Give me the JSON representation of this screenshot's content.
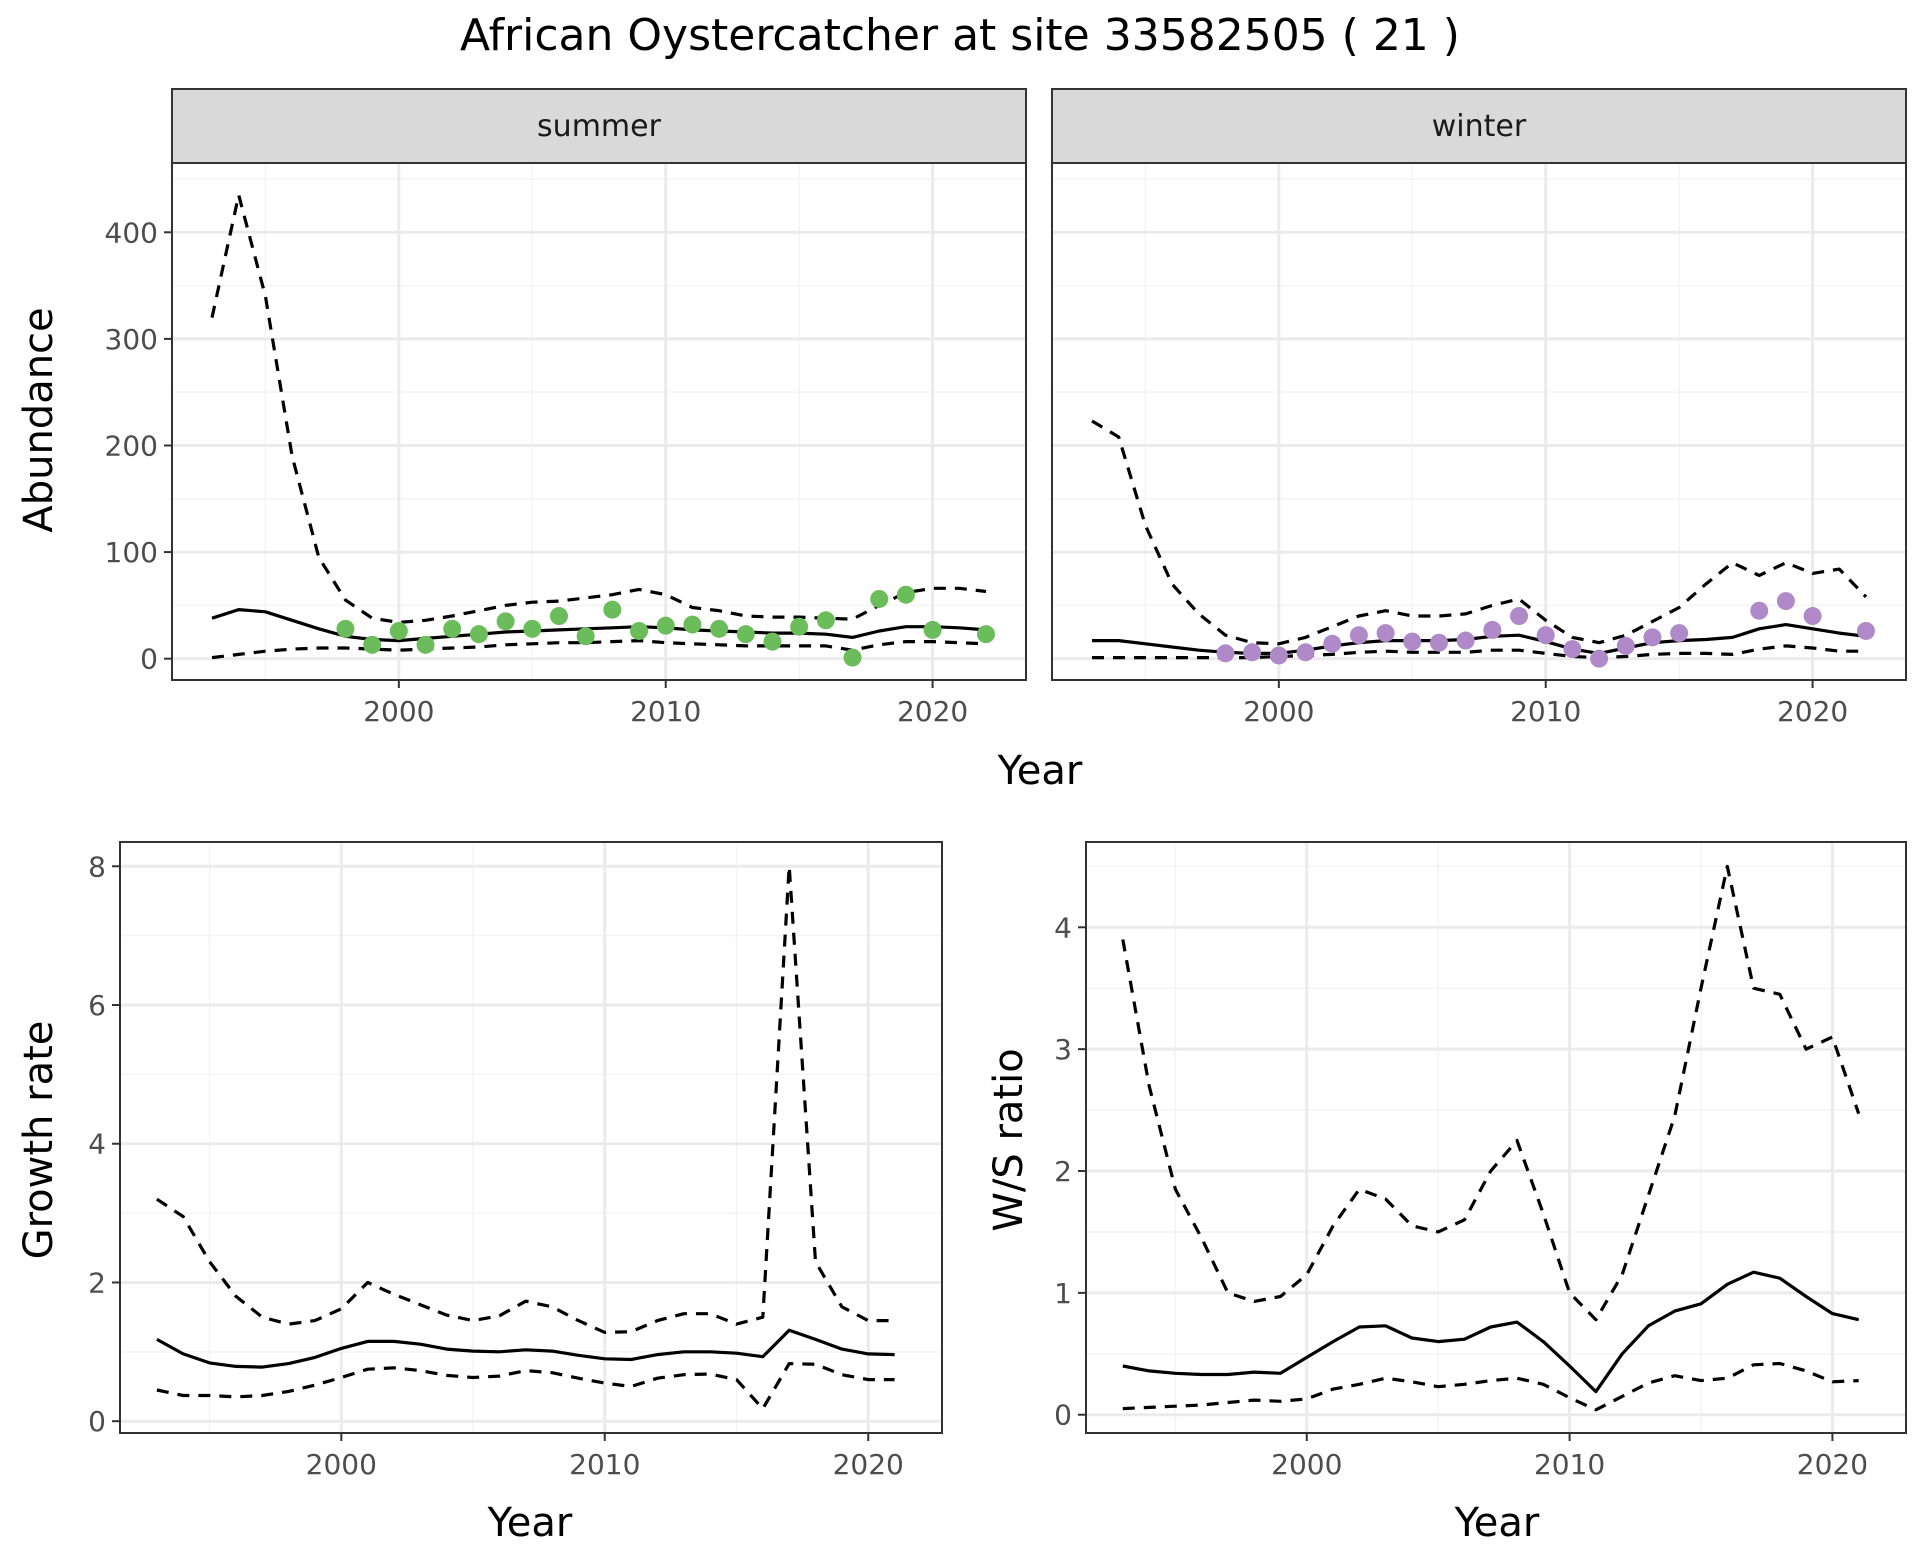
{
  "title": "African Oystercatcher at site 33582505 ( 21 )",
  "colors": {
    "summer_points": "#6abd5a",
    "winter_points": "#b08ac8",
    "line": "#000000",
    "grid_major": "#ebebeb",
    "grid_minor": "#f4f4f4",
    "strip_fill": "#d9d9d9",
    "panel_border": "#333333"
  },
  "chart_data": [
    {
      "type": "line",
      "facet": "summer",
      "xlabel": "Year",
      "ylabel": "Abundance",
      "xlim": [
        1991.5,
        2023.5
      ],
      "ylim": [
        -20,
        465
      ],
      "xticks": [
        2000,
        2010,
        2020
      ],
      "yticks": [
        0,
        100,
        200,
        300,
        400
      ],
      "x": [
        1993,
        1994,
        1995,
        1996,
        1997,
        1998,
        1999,
        2000,
        2001,
        2002,
        2003,
        2004,
        2005,
        2006,
        2007,
        2008,
        2009,
        2010,
        2011,
        2012,
        2013,
        2014,
        2015,
        2016,
        2017,
        2018,
        2019,
        2020,
        2021,
        2022
      ],
      "series": [
        {
          "role": "estimate",
          "style": "solid",
          "values": [
            38,
            46,
            44,
            36,
            28,
            21,
            18,
            17,
            19,
            21,
            23,
            25,
            26,
            27,
            28,
            29,
            30,
            29,
            27,
            26,
            25,
            24,
            24,
            23,
            20,
            26,
            30,
            30,
            29,
            27
          ]
        },
        {
          "role": "upper",
          "style": "dashed",
          "values": [
            320,
            435,
            340,
            190,
            95,
            55,
            38,
            34,
            36,
            40,
            45,
            50,
            53,
            54,
            57,
            60,
            65,
            60,
            48,
            45,
            40,
            39,
            39,
            38,
            37,
            50,
            62,
            66,
            66,
            63
          ]
        },
        {
          "role": "lower",
          "style": "dashed",
          "values": [
            1,
            4,
            7,
            9,
            10,
            10,
            9,
            8,
            9,
            10,
            11,
            13,
            14,
            15,
            15,
            16,
            17,
            15,
            14,
            13,
            12,
            12,
            12,
            12,
            8,
            13,
            16,
            16,
            15,
            14
          ]
        }
      ],
      "points": {
        "x": [
          1998,
          1999,
          2000,
          2001,
          2002,
          2003,
          2004,
          2005,
          2006,
          2007,
          2008,
          2009,
          2010,
          2011,
          2012,
          2013,
          2014,
          2015,
          2016,
          2017,
          2018,
          2019,
          2020,
          2022
        ],
        "y": [
          28,
          13,
          26,
          13,
          28,
          23,
          35,
          28,
          40,
          21,
          46,
          26,
          31,
          32,
          28,
          23,
          16,
          30,
          36,
          1,
          56,
          60,
          27,
          23
        ]
      }
    },
    {
      "type": "line",
      "facet": "winter",
      "xlabel": "Year",
      "ylabel": "Abundance",
      "xlim": [
        1991.5,
        2023.5
      ],
      "ylim": [
        -20,
        465
      ],
      "xticks": [
        2000,
        2010,
        2020
      ],
      "yticks": [
        0,
        100,
        200,
        300,
        400
      ],
      "x": [
        1993,
        1994,
        1995,
        1996,
        1997,
        1998,
        1999,
        2000,
        2001,
        2002,
        2003,
        2004,
        2005,
        2006,
        2007,
        2008,
        2009,
        2010,
        2011,
        2012,
        2013,
        2014,
        2015,
        2016,
        2017,
        2018,
        2019,
        2020,
        2021,
        2022
      ],
      "series": [
        {
          "role": "estimate",
          "style": "solid",
          "values": [
            17,
            17,
            14,
            11,
            8,
            6,
            5,
            5,
            8,
            12,
            15,
            17,
            17,
            17,
            18,
            21,
            22,
            16,
            9,
            5,
            10,
            15,
            17,
            18,
            20,
            28,
            32,
            28,
            24,
            21
          ]
        },
        {
          "role": "upper",
          "style": "dashed",
          "values": [
            223,
            208,
            125,
            70,
            42,
            22,
            15,
            14,
            20,
            30,
            40,
            45,
            40,
            40,
            42,
            50,
            56,
            36,
            20,
            15,
            22,
            35,
            48,
            70,
            90,
            78,
            90,
            80,
            84,
            58
          ]
        },
        {
          "role": "lower",
          "style": "dashed",
          "values": [
            1,
            1,
            1,
            1,
            1,
            1,
            1,
            2,
            3,
            4,
            6,
            7,
            6,
            6,
            6,
            8,
            8,
            5,
            2,
            1,
            2,
            4,
            5,
            5,
            4,
            9,
            12,
            10,
            7,
            7
          ]
        }
      ],
      "points": {
        "x": [
          1998,
          1999,
          2000,
          2001,
          2002,
          2003,
          2004,
          2005,
          2006,
          2007,
          2008,
          2009,
          2010,
          2011,
          2012,
          2013,
          2014,
          2015,
          2018,
          2019,
          2020,
          2022
        ],
        "y": [
          5,
          6,
          3,
          6,
          14,
          22,
          24,
          16,
          15,
          17,
          27,
          40,
          22,
          9,
          0,
          12,
          20,
          24,
          45,
          54,
          40,
          26
        ]
      }
    },
    {
      "type": "line",
      "xlabel": "Year",
      "ylabel": "Growth rate",
      "xlim": [
        1991.6,
        2022.8
      ],
      "ylim": [
        -0.17,
        8.35
      ],
      "xticks": [
        2000,
        2010,
        2020
      ],
      "yticks": [
        0,
        2,
        4,
        6,
        8
      ],
      "x": [
        1993,
        1994,
        1995,
        1996,
        1997,
        1998,
        1999,
        2000,
        2001,
        2002,
        2003,
        2004,
        2005,
        2006,
        2007,
        2008,
        2009,
        2010,
        2011,
        2012,
        2013,
        2014,
        2015,
        2016,
        2017,
        2018,
        2019,
        2020,
        2021
      ],
      "series": [
        {
          "role": "estimate",
          "style": "solid",
          "values": [
            1.18,
            0.97,
            0.84,
            0.79,
            0.78,
            0.83,
            0.92,
            1.05,
            1.15,
            1.15,
            1.11,
            1.04,
            1.01,
            1.0,
            1.03,
            1.01,
            0.95,
            0.9,
            0.89,
            0.96,
            1.0,
            1.0,
            0.98,
            0.93,
            1.31,
            1.18,
            1.04,
            0.97,
            0.96
          ]
        },
        {
          "role": "upper",
          "style": "dashed",
          "values": [
            3.2,
            2.95,
            2.3,
            1.8,
            1.5,
            1.4,
            1.45,
            1.62,
            2.0,
            1.83,
            1.68,
            1.53,
            1.45,
            1.52,
            1.73,
            1.65,
            1.45,
            1.28,
            1.29,
            1.45,
            1.55,
            1.55,
            1.4,
            1.5,
            8.0,
            2.3,
            1.65,
            1.45,
            1.45
          ]
        },
        {
          "role": "lower",
          "style": "dashed",
          "values": [
            0.45,
            0.37,
            0.37,
            0.35,
            0.37,
            0.43,
            0.52,
            0.63,
            0.75,
            0.77,
            0.73,
            0.66,
            0.63,
            0.65,
            0.73,
            0.7,
            0.62,
            0.55,
            0.5,
            0.62,
            0.67,
            0.68,
            0.6,
            0.18,
            0.83,
            0.82,
            0.67,
            0.6,
            0.6
          ]
        }
      ]
    },
    {
      "type": "line",
      "xlabel": "Year",
      "ylabel": "W/S ratio",
      "xlim": [
        1991.6,
        2022.8
      ],
      "ylim": [
        -0.15,
        4.7
      ],
      "xticks": [
        2000,
        2010,
        2020
      ],
      "yticks": [
        0,
        1,
        2,
        3,
        4
      ],
      "x": [
        1993,
        1994,
        1995,
        1996,
        1997,
        1998,
        1999,
        2000,
        2001,
        2002,
        2003,
        2004,
        2005,
        2006,
        2007,
        2008,
        2009,
        2010,
        2011,
        2012,
        2013,
        2014,
        2015,
        2016,
        2017,
        2018,
        2019,
        2020,
        2021
      ],
      "series": [
        {
          "role": "estimate",
          "style": "solid",
          "values": [
            0.4,
            0.36,
            0.34,
            0.33,
            0.33,
            0.35,
            0.34,
            0.47,
            0.6,
            0.72,
            0.73,
            0.63,
            0.6,
            0.62,
            0.72,
            0.76,
            0.6,
            0.4,
            0.19,
            0.5,
            0.73,
            0.85,
            0.91,
            1.07,
            1.17,
            1.12,
            0.97,
            0.83,
            0.78
          ]
        },
        {
          "role": "upper",
          "style": "dashed",
          "values": [
            3.9,
            2.7,
            1.85,
            1.45,
            1.0,
            0.93,
            0.97,
            1.15,
            1.55,
            1.85,
            1.77,
            1.55,
            1.5,
            1.6,
            2.0,
            2.25,
            1.65,
            1.0,
            0.78,
            1.15,
            1.8,
            2.45,
            3.5,
            4.5,
            3.5,
            3.45,
            3.0,
            3.1,
            2.47
          ]
        },
        {
          "role": "lower",
          "style": "dashed",
          "values": [
            0.05,
            0.06,
            0.07,
            0.08,
            0.1,
            0.12,
            0.11,
            0.13,
            0.21,
            0.25,
            0.3,
            0.27,
            0.23,
            0.25,
            0.28,
            0.3,
            0.25,
            0.14,
            0.04,
            0.15,
            0.26,
            0.32,
            0.28,
            0.3,
            0.41,
            0.42,
            0.36,
            0.27,
            0.28
          ]
        }
      ]
    }
  ]
}
